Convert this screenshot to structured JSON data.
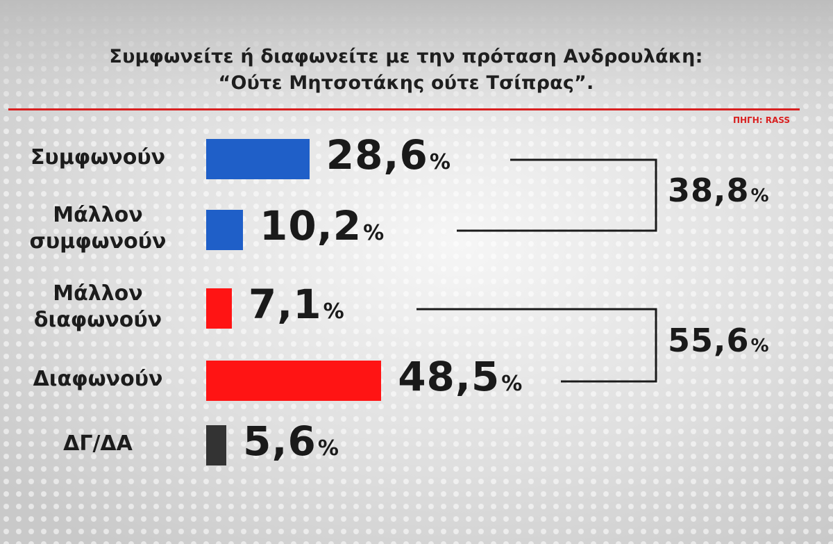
{
  "chart_data": {
    "type": "bar",
    "orientation": "horizontal",
    "title_lines": [
      "Συμφωνείτε ή διαφωνείτε με την πρόταση Ανδρουλάκη:",
      "“Ούτε Μητσοτάκης ούτε Τσίπρας”."
    ],
    "source": "ΠΗΓΗ: RASS",
    "percent_sign": "%",
    "categories": [
      {
        "label": [
          "Συμφωνούν"
        ],
        "value": 28.6,
        "value_label": "28,6",
        "color": "#1f5fc8"
      },
      {
        "label": [
          "Μάλλον",
          "συμφωνούν"
        ],
        "value": 10.2,
        "value_label": "10,2",
        "color": "#1f5fc8"
      },
      {
        "label": [
          "Μάλλον",
          "διαφωνούν"
        ],
        "value": 7.1,
        "value_label": "7,1",
        "color": "#ff1414"
      },
      {
        "label": [
          "Διαφωνούν"
        ],
        "value": 48.5,
        "value_label": "48,5",
        "color": "#ff1414"
      },
      {
        "label": [
          "ΔΓ/ΔΑ"
        ],
        "value": 5.6,
        "value_label": "5,6",
        "color": "#333333"
      }
    ],
    "groups": [
      {
        "members": [
          0,
          1
        ],
        "value": 38.8,
        "value_label": "38,8"
      },
      {
        "members": [
          2,
          3
        ],
        "value": 55.6,
        "value_label": "55,6"
      }
    ],
    "xlim": [
      0,
      100
    ],
    "grid": false,
    "legend": "none"
  },
  "colors": {
    "rule": "#d82020",
    "source": "#d82020",
    "bracket": "#1a1a1a"
  }
}
